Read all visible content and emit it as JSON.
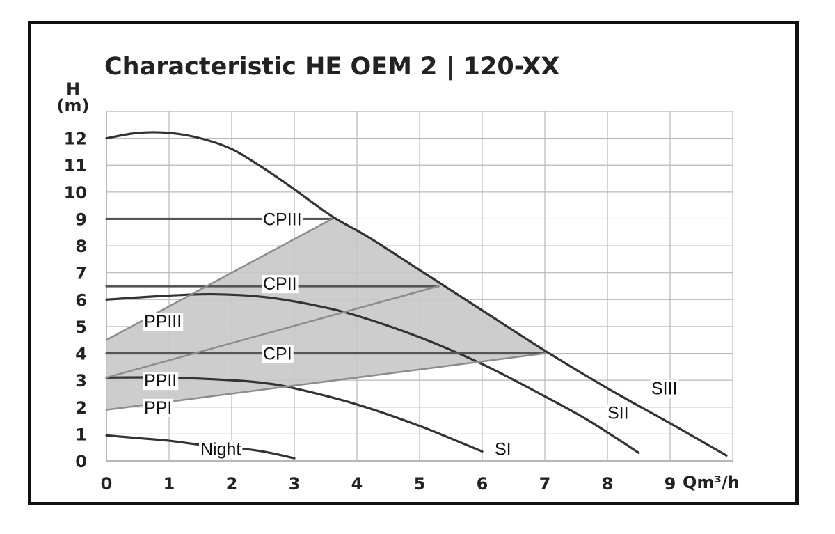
{
  "chart_data": {
    "type": "line",
    "title": "Characteristic HE OEM 2 | 120-XX",
    "ylabel": "H",
    "yunit": "(m)",
    "xlabel": "Qm³/h",
    "xlim": [
      0,
      10
    ],
    "ylim": [
      0,
      13
    ],
    "xticks": [
      "0",
      "1",
      "2",
      "3",
      "4",
      "5",
      "6",
      "7",
      "8",
      "9"
    ],
    "yticks": [
      "0",
      "1",
      "2",
      "3",
      "4",
      "5",
      "6",
      "7",
      "8",
      "9",
      "10",
      "11",
      "12"
    ],
    "grid": true,
    "colors": {
      "curve": "#333333",
      "line": "#555555",
      "region": "#c8c8c8",
      "grid": "#b8b8b8"
    },
    "series": [
      {
        "name": "SIII",
        "label_at": [
          8.7,
          2.7
        ],
        "x": [
          0,
          0.5,
          1.0,
          1.5,
          2.0,
          2.5,
          3.0,
          3.6,
          4.2,
          5.0,
          6.0,
          7.0,
          8.0,
          9.0,
          9.9
        ],
        "y": [
          12.0,
          12.2,
          12.2,
          12.0,
          11.6,
          10.9,
          10.1,
          9.1,
          8.3,
          7.1,
          5.6,
          4.1,
          2.7,
          1.4,
          0.2
        ]
      },
      {
        "name": "SII",
        "label_at": [
          8.0,
          1.8
        ],
        "x": [
          0,
          1.0,
          1.7,
          2.5,
          3.3,
          4.0,
          5.0,
          6.0,
          7.0,
          7.7,
          8.5
        ],
        "y": [
          6.0,
          6.15,
          6.2,
          6.1,
          5.8,
          5.4,
          4.6,
          3.6,
          2.4,
          1.5,
          0.3
        ]
      },
      {
        "name": "SI",
        "label_at": [
          6.2,
          0.45
        ],
        "x": [
          0,
          1.0,
          2.0,
          2.5,
          3.0,
          4.0,
          5.0,
          6.0
        ],
        "y": [
          3.1,
          3.1,
          3.0,
          2.9,
          2.7,
          2.1,
          1.3,
          0.35
        ]
      },
      {
        "name": "Night",
        "label_at": [
          1.5,
          0.45
        ],
        "x": [
          0,
          0.5,
          1.0,
          1.5,
          2.0,
          2.5,
          3.0
        ],
        "y": [
          0.95,
          0.85,
          0.75,
          0.6,
          0.5,
          0.35,
          0.1
        ]
      },
      {
        "name": "CPIII",
        "label_at": [
          2.5,
          9.0
        ],
        "x": [
          0,
          3.6
        ],
        "y": [
          9.0,
          9.0
        ]
      },
      {
        "name": "CPII",
        "label_at": [
          2.5,
          6.6
        ],
        "x": [
          0,
          5.3
        ],
        "y": [
          6.5,
          6.5
        ]
      },
      {
        "name": "CPI",
        "label_at": [
          2.5,
          4.0
        ],
        "x": [
          0,
          7.0
        ],
        "y": [
          4.0,
          4.0
        ]
      },
      {
        "name": "PPIII",
        "label_at": [
          0.6,
          5.2
        ],
        "x": [
          0,
          3.6
        ],
        "y": [
          4.5,
          9.0
        ]
      },
      {
        "name": "PPII",
        "label_at": [
          0.6,
          3.0
        ],
        "x": [
          0,
          5.3
        ],
        "y": [
          3.1,
          6.5
        ]
      },
      {
        "name": "PPI",
        "label_at": [
          0.6,
          2.0
        ],
        "x": [
          0,
          7.0
        ],
        "y": [
          1.9,
          4.0
        ]
      }
    ]
  }
}
